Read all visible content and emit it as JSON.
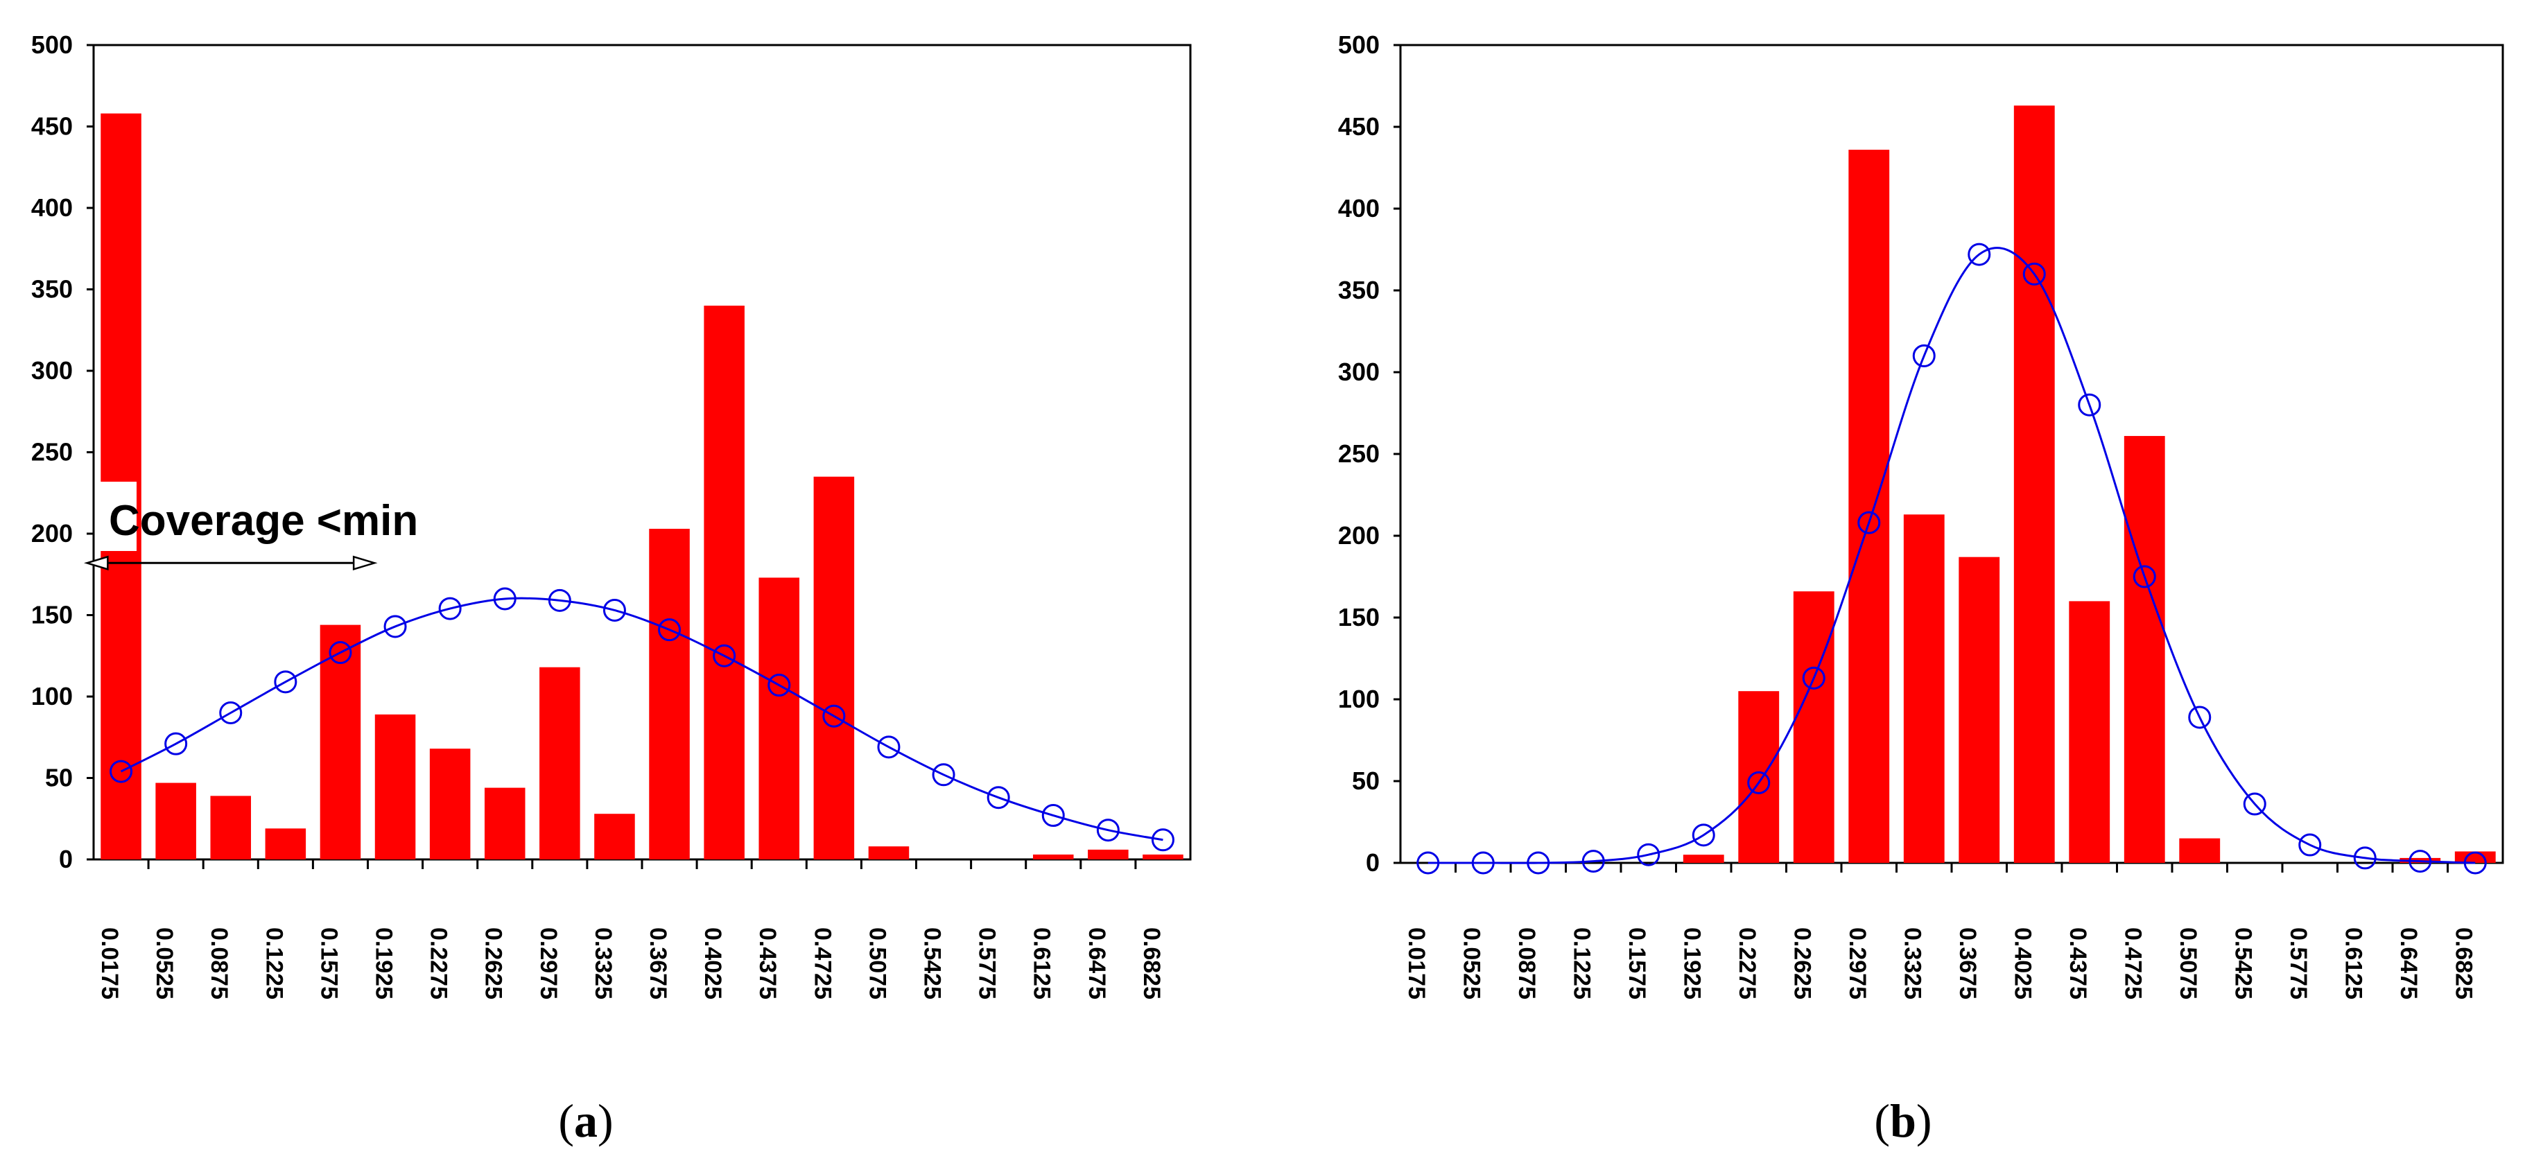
{
  "chart_data": [
    {
      "id": "a",
      "type": "bar",
      "panel_label": "a",
      "ylim": [
        0,
        500
      ],
      "yticks": [
        0,
        50,
        100,
        150,
        200,
        250,
        300,
        350,
        400,
        450,
        500
      ],
      "categories": [
        "0.0175",
        "0.0525",
        "0.0875",
        "0.1225",
        "0.1575",
        "0.1925",
        "0.2275",
        "0.2625",
        "0.2975",
        "0.3325",
        "0.3675",
        "0.4025",
        "0.4375",
        "0.4725",
        "0.5075",
        "0.5425",
        "0.5775",
        "0.6125",
        "0.6475",
        "0.6825"
      ],
      "bars": [
        {
          "x": 0.0175,
          "value": 458
        },
        {
          "x": 0.0525,
          "value": 47
        },
        {
          "x": 0.0875,
          "value": 39
        },
        {
          "x": 0.1225,
          "value": 19
        },
        {
          "x": 0.1575,
          "value": 144
        },
        {
          "x": 0.1925,
          "value": 89
        },
        {
          "x": 0.2275,
          "value": 68
        },
        {
          "x": 0.2625,
          "value": 44
        },
        {
          "x": 0.2975,
          "value": 118
        },
        {
          "x": 0.3325,
          "value": 28
        },
        {
          "x": 0.3675,
          "value": 203
        },
        {
          "x": 0.4025,
          "value": 340
        },
        {
          "x": 0.4375,
          "value": 173
        },
        {
          "x": 0.4725,
          "value": 235
        },
        {
          "x": 0.5075,
          "value": 8
        },
        {
          "x": 0.5425,
          "value": 0
        },
        {
          "x": 0.5775,
          "value": 0
        },
        {
          "x": 0.6125,
          "value": 3
        },
        {
          "x": 0.6475,
          "value": 6
        },
        {
          "x": 0.6825,
          "value": 3
        }
      ],
      "fit_points": [
        {
          "x": 0.0175,
          "y": 54
        },
        {
          "x": 0.0525,
          "y": 71
        },
        {
          "x": 0.0875,
          "y": 90
        },
        {
          "x": 0.1225,
          "y": 109
        },
        {
          "x": 0.1575,
          "y": 127
        },
        {
          "x": 0.1925,
          "y": 143
        },
        {
          "x": 0.2275,
          "y": 154
        },
        {
          "x": 0.2625,
          "y": 160
        },
        {
          "x": 0.2975,
          "y": 159
        },
        {
          "x": 0.3325,
          "y": 153
        },
        {
          "x": 0.3675,
          "y": 141
        },
        {
          "x": 0.4025,
          "y": 125
        },
        {
          "x": 0.4375,
          "y": 107
        },
        {
          "x": 0.4725,
          "y": 88
        },
        {
          "x": 0.5075,
          "y": 69
        },
        {
          "x": 0.5425,
          "y": 52
        },
        {
          "x": 0.5775,
          "y": 38
        },
        {
          "x": 0.6125,
          "y": 27
        },
        {
          "x": 0.6475,
          "y": 18
        },
        {
          "x": 0.6825,
          "y": 12
        }
      ],
      "annotation": {
        "text": "Coverage <min",
        "arrow_y_value": 182,
        "arrow_from_x": -0.0025,
        "arrow_to_x": 0.1775
      }
    },
    {
      "id": "b",
      "type": "bar",
      "panel_label": "b",
      "ylim": [
        0,
        500
      ],
      "yticks": [
        0,
        50,
        100,
        150,
        200,
        250,
        300,
        350,
        400,
        450,
        500
      ],
      "categories": [
        "0.0175",
        "0.0525",
        "0.0875",
        "0.1225",
        "0.1575",
        "0.1925",
        "0.2275",
        "0.2625",
        "0.2975",
        "0.3325",
        "0.3675",
        "0.4025",
        "0.4375",
        "0.4725",
        "0.5075",
        "0.5425",
        "0.5775",
        "0.6125",
        "0.6475",
        "0.6825"
      ],
      "bars": [
        {
          "x": 0.0175,
          "value": 0
        },
        {
          "x": 0.0525,
          "value": 0
        },
        {
          "x": 0.0875,
          "value": 0
        },
        {
          "x": 0.1225,
          "value": 0
        },
        {
          "x": 0.1575,
          "value": 0
        },
        {
          "x": 0.1925,
          "value": 5
        },
        {
          "x": 0.2275,
          "value": 105
        },
        {
          "x": 0.2625,
          "value": 166
        },
        {
          "x": 0.2975,
          "value": 436
        },
        {
          "x": 0.3325,
          "value": 213
        },
        {
          "x": 0.3675,
          "value": 187
        },
        {
          "x": 0.4025,
          "value": 463
        },
        {
          "x": 0.4375,
          "value": 160
        },
        {
          "x": 0.4725,
          "value": 261
        },
        {
          "x": 0.5075,
          "value": 15
        },
        {
          "x": 0.5425,
          "value": 0
        },
        {
          "x": 0.5775,
          "value": 0
        },
        {
          "x": 0.6125,
          "value": 0
        },
        {
          "x": 0.6475,
          "value": 3
        },
        {
          "x": 0.6825,
          "value": 7
        }
      ],
      "fit_points": [
        {
          "x": 0.0175,
          "y": 0
        },
        {
          "x": 0.0525,
          "y": 0
        },
        {
          "x": 0.0875,
          "y": 0
        },
        {
          "x": 0.1225,
          "y": 1
        },
        {
          "x": 0.1575,
          "y": 5
        },
        {
          "x": 0.1925,
          "y": 17
        },
        {
          "x": 0.2275,
          "y": 49
        },
        {
          "x": 0.2625,
          "y": 113
        },
        {
          "x": 0.2975,
          "y": 208
        },
        {
          "x": 0.3325,
          "y": 310
        },
        {
          "x": 0.3675,
          "y": 372
        },
        {
          "x": 0.4025,
          "y": 360
        },
        {
          "x": 0.4375,
          "y": 280
        },
        {
          "x": 0.4725,
          "y": 175
        },
        {
          "x": 0.5075,
          "y": 89
        },
        {
          "x": 0.5425,
          "y": 36
        },
        {
          "x": 0.5775,
          "y": 11
        },
        {
          "x": 0.6125,
          "y": 3
        },
        {
          "x": 0.6475,
          "y": 1
        },
        {
          "x": 0.6825,
          "y": 0
        }
      ]
    }
  ],
  "colors": {
    "bar": "#ff0000",
    "fit_line": "#0000e6",
    "axis": "#000000"
  }
}
